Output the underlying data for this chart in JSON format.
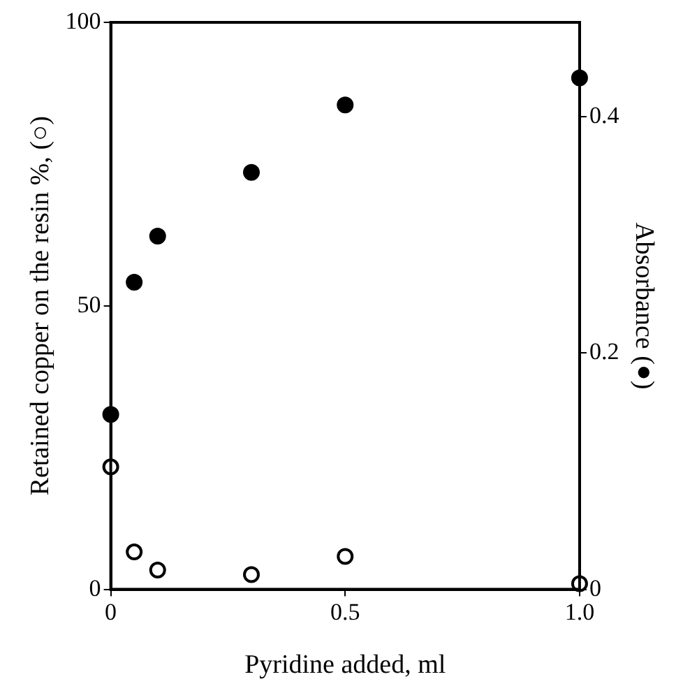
{
  "chart_data": {
    "type": "scatter",
    "xlabel": "Pyridine added, ml",
    "ylabel": "Retained copper on the resin %, (○)",
    "y2label": "Absorbance (●)",
    "x": [
      0,
      0.05,
      0.1,
      0.3,
      0.5,
      1.0
    ],
    "series": [
      {
        "color": "#ffffff",
        "values": [
          21.6,
          6.6,
          3.4,
          2.6,
          5.8,
          1.0
        ],
        "axis": "y"
      },
      {
        "color": "#000000",
        "values": [
          0.148,
          0.26,
          0.299,
          0.353,
          0.41,
          0.433
        ],
        "axis": "y2"
      }
    ],
    "xlim": [
      0,
      1.0
    ],
    "xticks": [
      0,
      0.5,
      {
        "value": 1.0,
        "label": "1.0"
      }
    ],
    "ylim": [
      0,
      100
    ],
    "yticks": [
      0,
      50,
      100
    ],
    "y2lim": [
      0,
      0.48
    ],
    "y2ticks": [
      0,
      0.2,
      0.4
    ],
    "marker": "circle",
    "grid": false,
    "legend": false
  }
}
